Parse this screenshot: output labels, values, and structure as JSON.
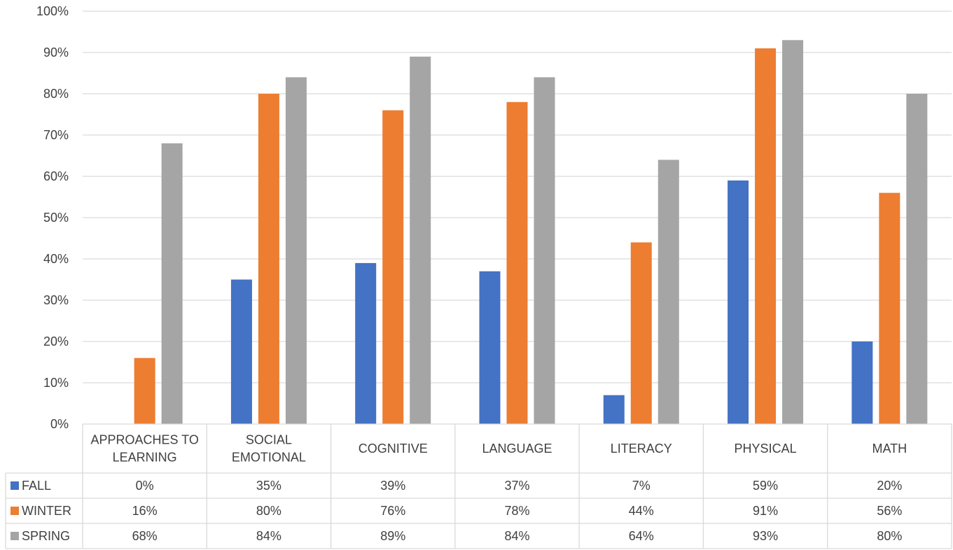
{
  "chart_data": {
    "type": "bar",
    "categories": [
      [
        "APPROACHES TO",
        "LEARNING"
      ],
      [
        "SOCIAL",
        "EMOTIONAL"
      ],
      [
        "COGNITIVE"
      ],
      [
        "LANGUAGE"
      ],
      [
        "LITERACY"
      ],
      [
        "PHYSICAL"
      ],
      [
        "MATH"
      ]
    ],
    "series": [
      {
        "name": "FALL",
        "color": "#4472C4",
        "values": [
          0,
          35,
          39,
          37,
          7,
          59,
          20
        ]
      },
      {
        "name": "WINTER",
        "color": "#ED7D31",
        "values": [
          16,
          80,
          76,
          78,
          44,
          91,
          56
        ]
      },
      {
        "name": "SPRING",
        "color": "#A5A5A5",
        "values": [
          68,
          84,
          89,
          84,
          64,
          93,
          80
        ]
      }
    ],
    "ylim": [
      0,
      100
    ],
    "yticks": [
      "0%",
      "10%",
      "20%",
      "30%",
      "40%",
      "50%",
      "60%",
      "70%",
      "80%",
      "90%",
      "100%"
    ],
    "grid": true,
    "legend": "data-table",
    "value_suffix": "%"
  }
}
